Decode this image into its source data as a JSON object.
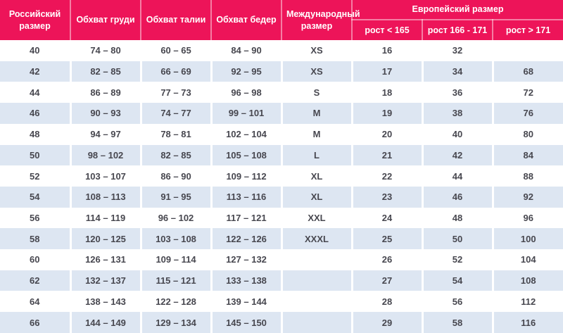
{
  "colors": {
    "header_bg": "#ED1459",
    "stripe_bg": "#DDE6F2",
    "row_bg": "#FFFFFF",
    "header_text": "#FFFFFF",
    "cell_text": "#47474F"
  },
  "table": {
    "header": {
      "russian_size": "Российский размер",
      "chest": "Обхват груди",
      "waist": "Обхват талии",
      "hips": "Обхват бедер",
      "international_size": "Международный размер",
      "european_size": "Европейский размер",
      "height_sub": [
        "рост < 165",
        "рост 166 - 171",
        "рост > 171"
      ]
    },
    "rows": [
      [
        "40",
        "74 – 80",
        "60 – 65",
        "84 – 90",
        "XS",
        "16",
        "32",
        ""
      ],
      [
        "42",
        "82 – 85",
        "66 – 69",
        "92 – 95",
        "XS",
        "17",
        "34",
        "68"
      ],
      [
        "44",
        "86 – 89",
        "77 – 73",
        "96 – 98",
        "S",
        "18",
        "36",
        "72"
      ],
      [
        "46",
        "90 – 93",
        "74 – 77",
        "99 – 101",
        "M",
        "19",
        "38",
        "76"
      ],
      [
        "48",
        "94 – 97",
        "78 – 81",
        "102 – 104",
        "M",
        "20",
        "40",
        "80"
      ],
      [
        "50",
        "98 – 102",
        "82 – 85",
        "105 – 108",
        "L",
        "21",
        "42",
        "84"
      ],
      [
        "52",
        "103 – 107",
        "86 – 90",
        "109 – 112",
        "XL",
        "22",
        "44",
        "88"
      ],
      [
        "54",
        "108 – 113",
        "91 – 95",
        "113 – 116",
        "XL",
        "23",
        "46",
        "92"
      ],
      [
        "56",
        "114 – 119",
        "96 – 102",
        "117 – 121",
        "XXL",
        "24",
        "48",
        "96"
      ],
      [
        "58",
        "120 – 125",
        "103 – 108",
        "122 – 126",
        "XXXL",
        "25",
        "50",
        "100"
      ],
      [
        "60",
        "126 – 131",
        "109 – 114",
        "127 – 132",
        "",
        "26",
        "52",
        "104"
      ],
      [
        "62",
        "132 – 137",
        "115 – 121",
        "133 – 138",
        "",
        "27",
        "54",
        "108"
      ],
      [
        "64",
        "138 – 143",
        "122 – 128",
        "139 – 144",
        "",
        "28",
        "56",
        "112"
      ],
      [
        "66",
        "144 – 149",
        "129 – 134",
        "145 – 150",
        "",
        "29",
        "58",
        "116"
      ]
    ]
  }
}
